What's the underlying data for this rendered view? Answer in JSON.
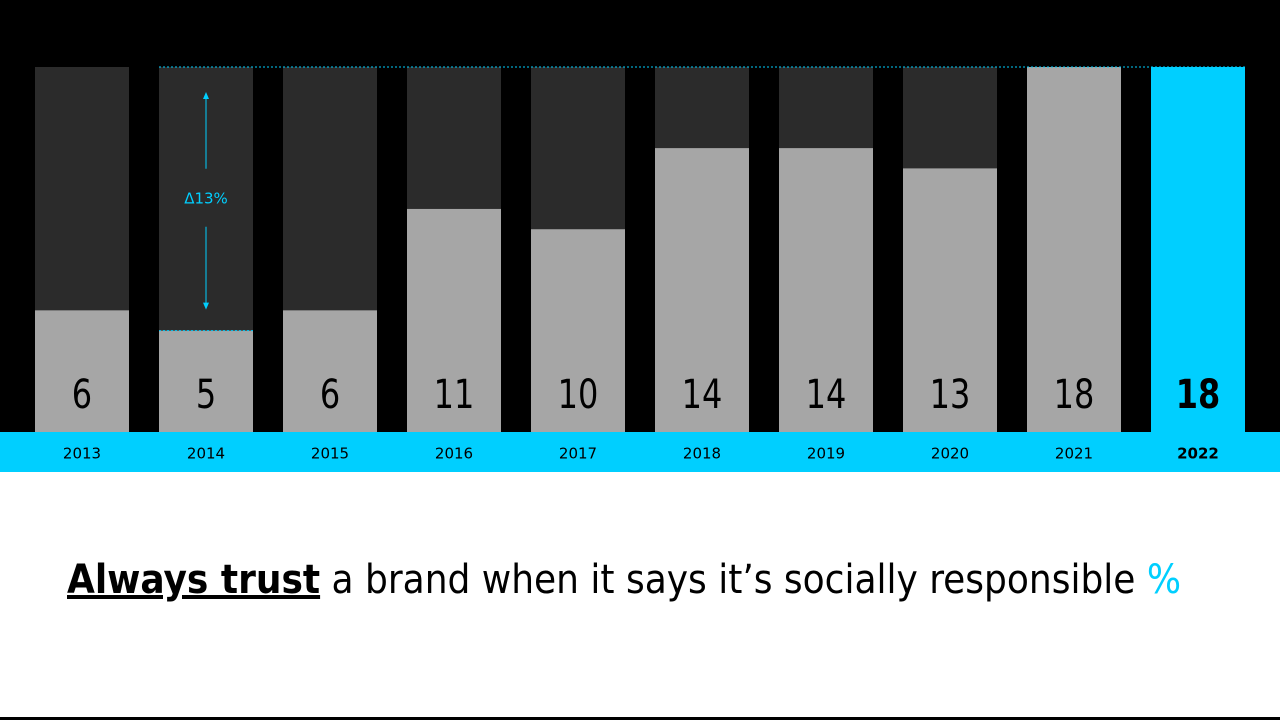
{
  "chart_data": {
    "type": "bar",
    "categories": [
      "2013",
      "2014",
      "2015",
      "2016",
      "2017",
      "2018",
      "2019",
      "2020",
      "2021",
      "2022"
    ],
    "values": [
      6,
      5,
      6,
      11,
      10,
      14,
      14,
      13,
      18,
      18
    ],
    "color": "#a6a6a6",
    "track_color": "#2b2b2b",
    "highlight_color": "#00cfff",
    "ylim": [
      0,
      18
    ],
    "annotation": "Δ13%",
    "title": "Always trust",
    "title_rest": "a brand when it says it’s socially responsible",
    "unit": "%"
  }
}
